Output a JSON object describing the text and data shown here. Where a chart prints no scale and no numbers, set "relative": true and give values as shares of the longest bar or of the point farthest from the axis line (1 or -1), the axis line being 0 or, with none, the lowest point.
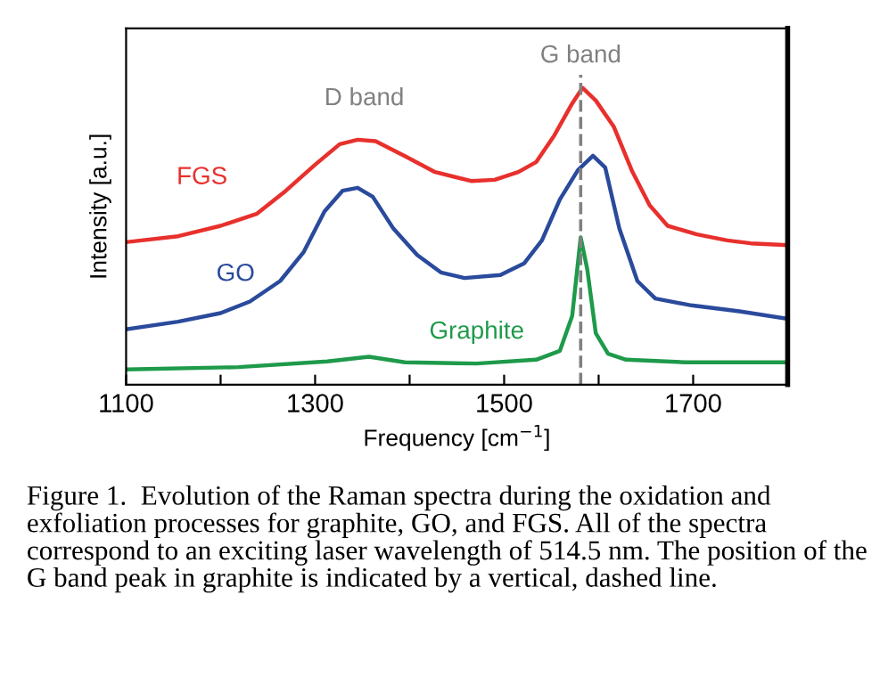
{
  "chart_data": {
    "type": "line",
    "relative": true,
    "xlabel": "Frequency [cm$^{−1}$]",
    "ylabel": "Intensity [a.u.]",
    "xlim": [
      1100,
      1800
    ],
    "xticks": [
      1100,
      {
        "value": 1200,
        "label": null
      },
      1300,
      {
        "value": 1400,
        "label": null
      },
      1500,
      {
        "value": 1600,
        "label": null
      },
      1700,
      {
        "value": 1800,
        "label": null
      }
    ],
    "tick_labels": "x",
    "grid": false,
    "legend": false,
    "marker": "none",
    "line_style": "solid",
    "series": [
      {
        "name": "FGS",
        "color": "#e8302c",
        "x": [
          1100,
          1155,
          1200,
          1238,
          1269,
          1300,
          1326,
          1345,
          1364,
          1395,
          1427,
          1465,
          1490,
          1515,
          1534,
          1553,
          1572,
          1583,
          1597,
          1616,
          1635,
          1654,
          1673,
          1704,
          1736,
          1761,
          1800
        ],
        "values": [
          0.48,
          0.5,
          0.535,
          0.575,
          0.653,
          0.741,
          0.81,
          0.825,
          0.82,
          0.77,
          0.716,
          0.686,
          0.69,
          0.716,
          0.75,
          0.839,
          0.947,
          1.0,
          0.957,
          0.869,
          0.722,
          0.604,
          0.535,
          0.506,
          0.486,
          0.476,
          0.47
        ]
      },
      {
        "name": "GO",
        "color": "#2a4a9c",
        "x": [
          1100,
          1155,
          1200,
          1231,
          1263,
          1288,
          1310,
          1329,
          1345,
          1361,
          1383,
          1408,
          1433,
          1458,
          1496,
          1521,
          1540,
          1559,
          1578,
          1594,
          1607,
          1622,
          1641,
          1660,
          1698,
          1749,
          1800
        ],
        "values": [
          0.186,
          0.212,
          0.241,
          0.28,
          0.349,
          0.447,
          0.584,
          0.653,
          0.663,
          0.633,
          0.525,
          0.437,
          0.378,
          0.359,
          0.369,
          0.408,
          0.486,
          0.624,
          0.722,
          0.771,
          0.731,
          0.525,
          0.349,
          0.29,
          0.267,
          0.247,
          0.222
        ]
      },
      {
        "name": "Graphite",
        "color": "#1e9a4a",
        "x": [
          1100,
          1219,
          1313,
          1357,
          1395,
          1471,
          1534,
          1559,
          1572,
          1581,
          1588,
          1597,
          1610,
          1629,
          1692,
          1800
        ],
        "values": [
          0.051,
          0.059,
          0.078,
          0.094,
          0.075,
          0.071,
          0.084,
          0.114,
          0.231,
          0.496,
          0.388,
          0.173,
          0.104,
          0.084,
          0.075,
          0.075
        ]
      }
    ],
    "ref_lines": [
      {
        "axis": "x",
        "value": 1581,
        "color": "#808080",
        "line_style": "dashed",
        "label": "G band"
      }
    ],
    "annotations": [
      "D band",
      "Figure 1.  Evolution of the Raman spectra during the oxidation and exfoliation processes for graphite, GO, and FGS. All of the spectra correspond to an exciting laser wavelength of 514.5 nm. The position of the G band peak in graphite is indicated by a vertical, dashed line."
    ]
  }
}
